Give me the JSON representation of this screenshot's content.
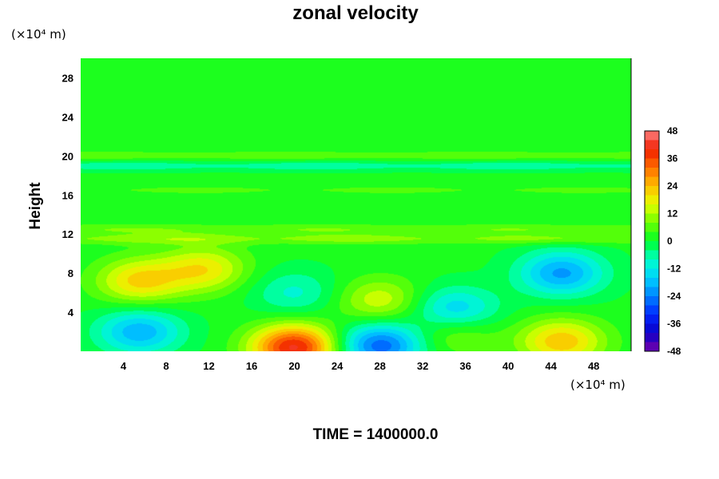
{
  "chart_data": {
    "type": "heatmap",
    "title": "zonal velocity",
    "ylabel": "Height",
    "xlabel": "",
    "x_unit": "(×10⁴ m)",
    "y_unit": "(×10⁴ m)",
    "xlim": [
      0,
      51.5
    ],
    "ylim": [
      0,
      30
    ],
    "xticks": [
      "4",
      "8",
      "12",
      "16",
      "20",
      "24",
      "28",
      "32",
      "36",
      "40",
      "44",
      "48"
    ],
    "yticks": [
      "4",
      "8",
      "12",
      "16",
      "20",
      "24",
      "28"
    ],
    "colorbar": {
      "min": -48,
      "max": 48,
      "step": 4,
      "ticks": [
        "48",
        "36",
        "24",
        "12",
        "0",
        "-12",
        "-24",
        "-36",
        "-48"
      ]
    },
    "background_value": 1,
    "features": [
      {
        "x": 5.5,
        "y": 7.2,
        "value": 20
      },
      {
        "x": 11.5,
        "y": 8.4,
        "value": 18
      },
      {
        "x": 5.5,
        "y": 2.0,
        "value": -20
      },
      {
        "x": 20.0,
        "y": 0.4,
        "value": 40
      },
      {
        "x": 20.0,
        "y": 6.0,
        "value": -10
      },
      {
        "x": 28.0,
        "y": 0.6,
        "value": -28
      },
      {
        "x": 28.0,
        "y": 5.2,
        "value": 14
      },
      {
        "x": 35.0,
        "y": 4.2,
        "value": -18
      },
      {
        "x": 35.0,
        "y": 2.0,
        "value": 10
      },
      {
        "x": 45.0,
        "y": 8.0,
        "value": -22
      },
      {
        "x": 45.0,
        "y": 1.0,
        "value": 22
      }
    ],
    "bands": [
      {
        "y": 19.0,
        "value": -8
      },
      {
        "y": 20.0,
        "value": 6
      },
      {
        "y": 16.5,
        "value": 4
      },
      {
        "y": 12.5,
        "value": 7
      },
      {
        "y": 11.5,
        "value": 9
      }
    ]
  },
  "footer": {
    "time_label": "TIME = 1400000.0"
  }
}
